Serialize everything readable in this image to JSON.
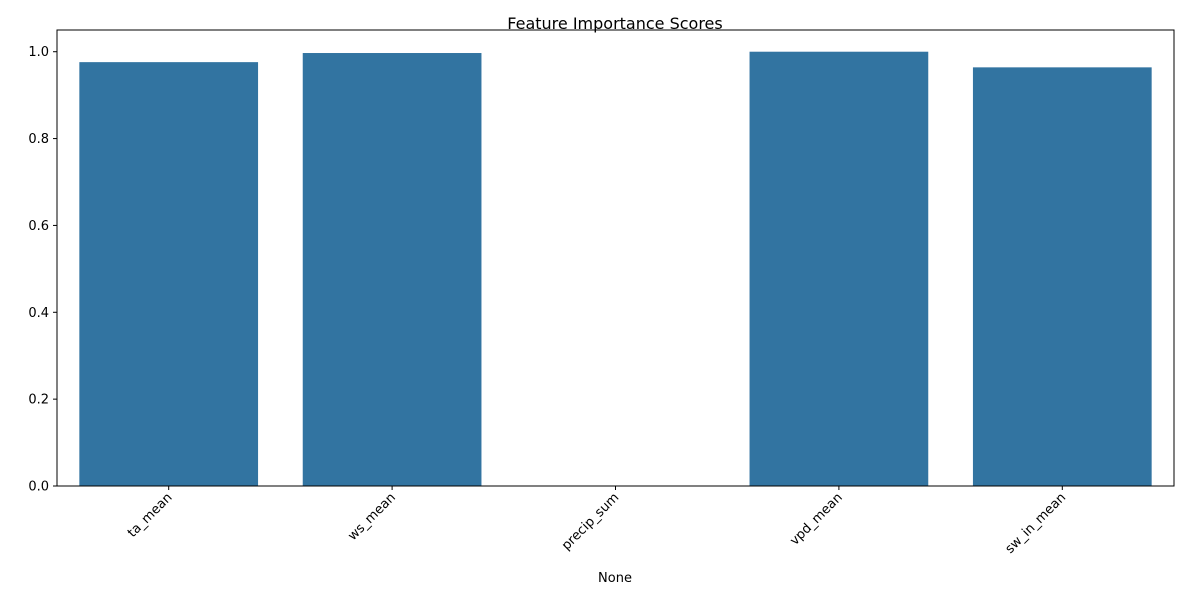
{
  "chart_data": {
    "type": "bar",
    "title": "Feature Importance Scores",
    "xlabel": "None",
    "ylabel": "",
    "categories": [
      "ta_mean",
      "ws_mean",
      "precip_sum",
      "vpd_mean",
      "sw_in_mean"
    ],
    "values": [
      0.976,
      0.997,
      0.0,
      1.0,
      0.964
    ],
    "ylim": [
      0,
      1.05
    ],
    "yticks": [
      0.0,
      0.2,
      0.4,
      0.6,
      0.8,
      1.0
    ],
    "ytick_labels": [
      "0.0",
      "0.2",
      "0.4",
      "0.6",
      "0.8",
      "1.0"
    ],
    "bar_color": "#3274a1",
    "grid": false,
    "x_tick_rotation": "45 degrees"
  }
}
